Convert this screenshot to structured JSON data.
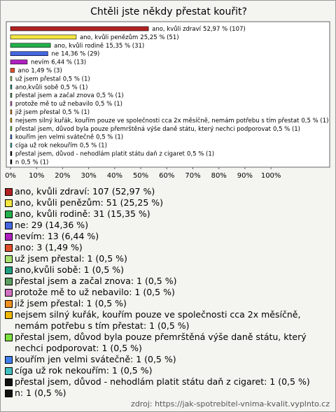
{
  "chart_data": {
    "type": "bar",
    "orientation": "horizontal",
    "title": "Chtěli jste někdy přestat kouřit?",
    "categories": [
      "ano, kvůli zdraví",
      "ano, kvůli penězům",
      "ano, kvůli rodině",
      "ne",
      "nevím",
      "ano",
      "už jsem přestal",
      "ano,kvůli sobě",
      "přestal jsem a začal znova",
      "protože mě to už nebavilo",
      "již jsem přestal",
      "nejsem silný kuřák, kouřím pouze ve společnosti cca 2x měsíčně, nemám potřebu s tím přestat",
      "přestal jsem, důvod byla pouze přemrštěná výše daně státu, který nechci podporovat",
      "kouřím jen velmi svátečně",
      "cíga už rok nekouřím",
      "přestal jsem, důvod - nehodlám platit státu daň z cigaret",
      "n"
    ],
    "values": [
      52.97,
      25.25,
      15.35,
      14.36,
      6.44,
      1.49,
      0.5,
      0.5,
      0.5,
      0.5,
      0.5,
      0.5,
      0.5,
      0.5,
      0.5,
      0.5,
      0.5
    ],
    "value_labels": [
      "52,97 % (107)",
      "25,25 % (51)",
      "15,35 % (31)",
      "14,36 % (29)",
      "6,44 % (13)",
      "1,49 % (3)",
      "0,5 % (1)",
      "0,5 % (1)",
      "0,5 % (1)",
      "0,5 % (1)",
      "0,5 % (1)",
      "0,5 % (1)",
      "0,5 % (1)",
      "0,5 % (1)",
      "0,5 % (1)",
      "0,5 % (1)",
      "0,5 % (1)"
    ],
    "colors": [
      "#b22222",
      "#f2e640",
      "#22b14c",
      "#4466e0",
      "#b020c0",
      "#e0502a",
      "#a8e070",
      "#20a080",
      "#5aa060",
      "#d070c0",
      "#f09020",
      "#f0b800",
      "#7ce040",
      "#4080f0",
      "#40c0c0",
      "#111111",
      "#111111"
    ],
    "legend_labels": [
      "ano, kvůli zdraví: 107 (52,97 %)",
      "ano, kvůli penězům: 51 (25,25 %)",
      "ano, kvůli rodině: 31 (15,35 %)",
      "ne: 29 (14,36 %)",
      "nevím: 13 (6,44 %)",
      "ano: 3 (1,49 %)",
      "už jsem přestal: 1 (0,5 %)",
      "ano,kvůli sobě: 1 (0,5 %)",
      "přestal jsem a začal znova: 1 (0,5 %)",
      "protože mě to už nebavilo: 1 (0,5 %)",
      "již jsem přestal: 1 (0,5 %)",
      "nejsem silný kuřák, kouřím pouze ve společnosti cca 2x měsíčně, nemám potřebu s tím přestat: 1 (0,5 %)",
      "přestal jsem, důvod byla pouze přemrštěná výše daně státu, který nechci podporovat: 1 (0,5 %)",
      "kouřím jen velmi svátečně: 1 (0,5 %)",
      "cíga už rok nekouřím: 1 (0,5 %)",
      "přestal jsem, důvod - nehodlám platit státu daň z cigaret: 1 (0,5 %)",
      "n: 1 (0,5 %)"
    ],
    "xlim": [
      0,
      122
    ],
    "xticks": [
      {
        "value": 0,
        "label": "0%"
      },
      {
        "value": 10,
        "label": "10%"
      },
      {
        "value": 20,
        "label": "20%"
      },
      {
        "value": 30,
        "label": "30%"
      },
      {
        "value": 40,
        "label": "40%"
      },
      {
        "value": 50,
        "label": "50%"
      },
      {
        "value": 60,
        "label": "60%"
      },
      {
        "value": 70,
        "label": "70%"
      },
      {
        "value": 80,
        "label": "80%"
      },
      {
        "value": 90,
        "label": "90%"
      },
      {
        "value": 100,
        "label": "100%"
      }
    ],
    "source": "zdroj: https://jak-spotrebitel-vnima-kvalit.vyplnto.cz"
  }
}
